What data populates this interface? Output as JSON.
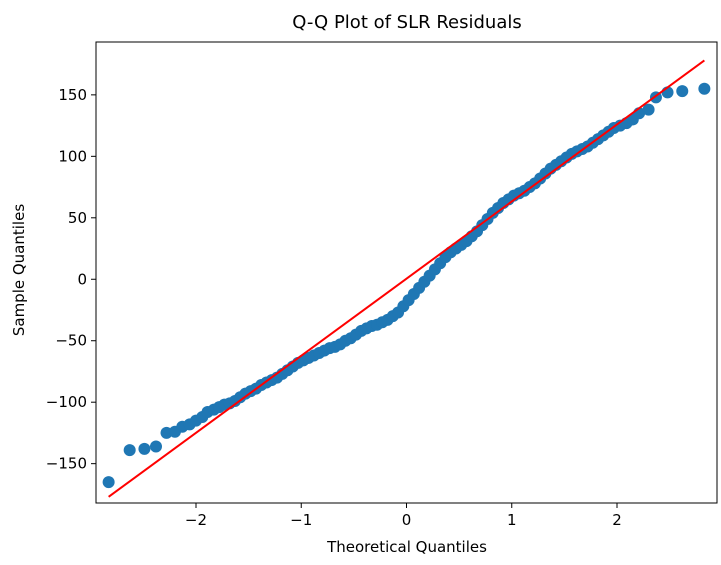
{
  "chart_data": {
    "type": "scatter",
    "title": "Q-Q Plot of SLR Residuals",
    "xlabel": "Theoretical Quantiles",
    "ylabel": "Sample Quantiles",
    "xlim": [
      -2.95,
      2.95
    ],
    "ylim": [
      -182,
      193
    ],
    "x_ticks": [
      -2,
      -1,
      0,
      1,
      2
    ],
    "x_tick_labels": [
      "−2",
      "−1",
      "0",
      "1",
      "2"
    ],
    "y_ticks": [
      -150,
      -100,
      -50,
      0,
      50,
      100,
      150
    ],
    "y_tick_labels": [
      "−150",
      "−100",
      "−50",
      "0",
      "50",
      "100",
      "150"
    ],
    "grid": false,
    "colors": {
      "points": "#1f77b4",
      "reference_line": "#ff0000"
    },
    "reference_line": {
      "x": [
        -2.83,
        2.83
      ],
      "y": [
        -177,
        178
      ]
    },
    "series": [
      {
        "points": [
          [
            -2.83,
            -165
          ],
          [
            -2.63,
            -139
          ],
          [
            -2.49,
            -138
          ],
          [
            -2.38,
            -136
          ],
          [
            -2.28,
            -125
          ],
          [
            -2.2,
            -124
          ],
          [
            -2.13,
            -120
          ],
          [
            -2.06,
            -118
          ],
          [
            -2.0,
            -115
          ],
          [
            -1.94,
            -112
          ],
          [
            -1.89,
            -108
          ],
          [
            -1.83,
            -106
          ],
          [
            -1.78,
            -104
          ],
          [
            -1.73,
            -102
          ],
          [
            -1.68,
            -101
          ],
          [
            -1.63,
            -99
          ],
          [
            -1.58,
            -96
          ],
          [
            -1.53,
            -93
          ],
          [
            -1.48,
            -91
          ],
          [
            -1.43,
            -89
          ],
          [
            -1.38,
            -86
          ],
          [
            -1.33,
            -84
          ],
          [
            -1.28,
            -82
          ],
          [
            -1.23,
            -80
          ],
          [
            -1.18,
            -77
          ],
          [
            -1.13,
            -74
          ],
          [
            -1.08,
            -71
          ],
          [
            -1.03,
            -68
          ],
          [
            -0.98,
            -66
          ],
          [
            -0.93,
            -64
          ],
          [
            -0.88,
            -62
          ],
          [
            -0.83,
            -60
          ],
          [
            -0.78,
            -58
          ],
          [
            -0.73,
            -56
          ],
          [
            -0.68,
            -55
          ],
          [
            -0.63,
            -53
          ],
          [
            -0.58,
            -50
          ],
          [
            -0.53,
            -48
          ],
          [
            -0.48,
            -45
          ],
          [
            -0.43,
            -42
          ],
          [
            -0.38,
            -40
          ],
          [
            -0.33,
            -38
          ],
          [
            -0.28,
            -37
          ],
          [
            -0.23,
            -35
          ],
          [
            -0.18,
            -33
          ],
          [
            -0.13,
            -30
          ],
          [
            -0.08,
            -27
          ],
          [
            -0.03,
            -22
          ],
          [
            0.02,
            -17
          ],
          [
            0.07,
            -12
          ],
          [
            0.12,
            -7
          ],
          [
            0.17,
            -2
          ],
          [
            0.22,
            3
          ],
          [
            0.27,
            8
          ],
          [
            0.32,
            13
          ],
          [
            0.37,
            18
          ],
          [
            0.42,
            22
          ],
          [
            0.47,
            25
          ],
          [
            0.52,
            28
          ],
          [
            0.57,
            31
          ],
          [
            0.62,
            35
          ],
          [
            0.67,
            39
          ],
          [
            0.72,
            44
          ],
          [
            0.77,
            49
          ],
          [
            0.82,
            54
          ],
          [
            0.87,
            58
          ],
          [
            0.92,
            62
          ],
          [
            0.97,
            65
          ],
          [
            1.02,
            68
          ],
          [
            1.07,
            70
          ],
          [
            1.12,
            72
          ],
          [
            1.17,
            75
          ],
          [
            1.22,
            78
          ],
          [
            1.27,
            82
          ],
          [
            1.32,
            86
          ],
          [
            1.37,
            90
          ],
          [
            1.42,
            93
          ],
          [
            1.47,
            96
          ],
          [
            1.52,
            99
          ],
          [
            1.57,
            102
          ],
          [
            1.62,
            104
          ],
          [
            1.67,
            106
          ],
          [
            1.72,
            108
          ],
          [
            1.77,
            111
          ],
          [
            1.82,
            114
          ],
          [
            1.87,
            117
          ],
          [
            1.92,
            120
          ],
          [
            1.97,
            123
          ],
          [
            2.03,
            125
          ],
          [
            2.09,
            127
          ],
          [
            2.15,
            130
          ],
          [
            2.21,
            135
          ],
          [
            2.3,
            138
          ],
          [
            2.37,
            148
          ],
          [
            2.48,
            152
          ],
          [
            2.62,
            153
          ],
          [
            2.83,
            155
          ]
        ]
      }
    ]
  }
}
